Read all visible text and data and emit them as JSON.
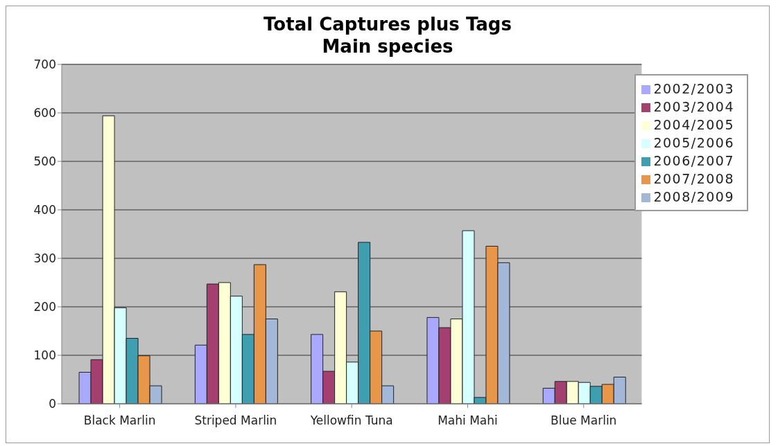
{
  "chart_data": {
    "type": "bar",
    "title": "Total Captures plus Tags\nMain species",
    "categories": [
      "Black Marlin",
      "Striped Marlin",
      "Yellowfin Tuna",
      "Mahi Mahi",
      "Blue Marlin"
    ],
    "series": [
      {
        "name": "2002/2003",
        "color": "#a9a9ff",
        "values": [
          65,
          121,
          143,
          178,
          32
        ]
      },
      {
        "name": "2003/2004",
        "color": "#a3406f",
        "values": [
          91,
          247,
          67,
          157,
          46
        ]
      },
      {
        "name": "2004/2005",
        "color": "#ffffd6",
        "values": [
          594,
          250,
          231,
          175,
          46
        ]
      },
      {
        "name": "2005/2006",
        "color": "#d6ffff",
        "values": [
          198,
          222,
          86,
          357,
          44
        ]
      },
      {
        "name": "2006/2007",
        "color": "#3f9fb0",
        "values": [
          135,
          143,
          333,
          13,
          36
        ]
      },
      {
        "name": "2007/2008",
        "color": "#e8964a",
        "values": [
          99,
          287,
          150,
          325,
          40
        ]
      },
      {
        "name": "2008/2009",
        "color": "#a3b8d8",
        "values": [
          37,
          175,
          37,
          291,
          55
        ]
      }
    ],
    "ylim": [
      0,
      700
    ],
    "yticks": [
      0,
      100,
      200,
      300,
      400,
      500,
      600,
      700
    ],
    "grid": "y",
    "legend": "top right"
  }
}
